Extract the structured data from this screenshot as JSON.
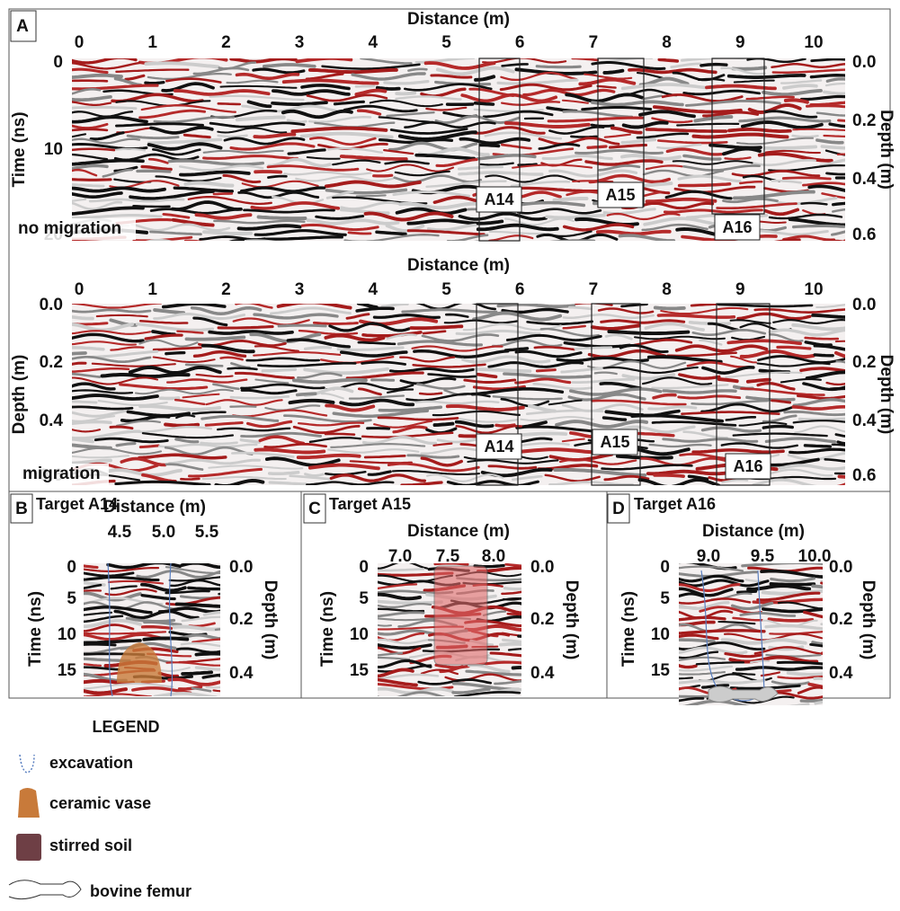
{
  "panel_a": {
    "label": "A",
    "top": {
      "x_label": "Distance (m)",
      "x_ticks": [
        "0",
        "1",
        "2",
        "3",
        "4",
        "5",
        "6",
        "7",
        "8",
        "9",
        "10"
      ],
      "y_label": "Time (ns)",
      "y_ticks": [
        "0",
        "10",
        "20"
      ],
      "y2_label": "Depth (m)",
      "y2_ticks": [
        "0.0",
        "0.2",
        "0.4",
        "0.6"
      ],
      "targets": [
        "A14",
        "A15",
        "A16"
      ],
      "note": "no migration"
    },
    "bottom": {
      "x_label": "Distance (m)",
      "x_ticks": [
        "0",
        "1",
        "2",
        "3",
        "4",
        "5",
        "6",
        "7",
        "8",
        "9",
        "10"
      ],
      "y_label": "Depth (m)",
      "y_ticks": [
        "0.0",
        "0.2",
        "0.4",
        "0.6"
      ],
      "y2_label": "Depth (m)",
      "y2_ticks": [
        "0.0",
        "0.2",
        "0.4",
        "0.6"
      ],
      "targets": [
        "A14",
        "A15",
        "A16"
      ],
      "note": "migration"
    }
  },
  "panels": [
    {
      "label": "B",
      "title": "Target A14",
      "x_label": "Distance (m)",
      "x_ticks": [
        "4.5",
        "5.0",
        "5.5"
      ],
      "y_label": "Time (ns)",
      "y_ticks": [
        "0",
        "5",
        "10",
        "15"
      ],
      "y2_label": "Depth (m)",
      "y2_ticks": [
        "0.0",
        "0.2",
        "0.4"
      ]
    },
    {
      "label": "C",
      "title": "Target A15",
      "x_label": "Distance (m)",
      "x_ticks": [
        "7.0",
        "7.5",
        "8.0"
      ],
      "y_label": "Time (ns)",
      "y_ticks": [
        "0",
        "5",
        "10",
        "15"
      ],
      "y2_label": "Depth (m)",
      "y2_ticks": [
        "0.0",
        "0.2",
        "0.4"
      ]
    },
    {
      "label": "D",
      "title": "Target A16",
      "x_label": "Distance (m)",
      "x_ticks": [
        "9.0",
        "9.5",
        "10.0"
      ],
      "y_label": "Time (ns)",
      "y_ticks": [
        "0",
        "5",
        "10",
        "15"
      ],
      "y2_label": "Depth (m)",
      "y2_ticks": [
        "0.0",
        "0.2",
        "0.4"
      ]
    }
  ],
  "legend": {
    "title": "LEGEND",
    "items": [
      "excavation",
      "ceramic vase",
      "stirred soil",
      "bovine femur"
    ]
  }
}
